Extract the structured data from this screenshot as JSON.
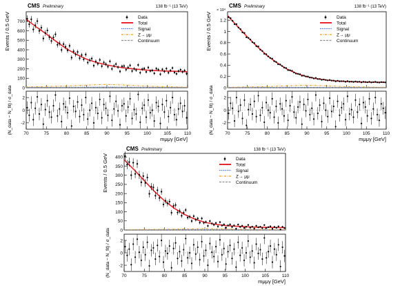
{
  "figure": {
    "cms_label": "CMS",
    "preliminary_label": "Preliminary",
    "lumi_label": "138 fb⁻¹ (13 TeV)"
  },
  "legend": {
    "data": "Data",
    "total": "Total",
    "signal": "Signal",
    "zmumu": "Z→ μμ",
    "continuum": "Continuum"
  },
  "colors": {
    "total": "#e8262b",
    "signal": "#3f6fe0",
    "zmumu": "#f39c1f",
    "continuum": "#8f8f8f",
    "data": "#000000"
  },
  "chart_data": [
    {
      "type": "scatter",
      "panel": "top-left",
      "title": "",
      "xlabel": "mμμγ [GeV]",
      "ylabel": "Events / 0.5 GeV",
      "ratio_ylabel": "(N_data − N_fit) / σ_data",
      "xlim": [
        70,
        110
      ],
      "ylim": [
        0,
        800
      ],
      "yticks": [
        0,
        100,
        200,
        300,
        400,
        500,
        600,
        700
      ],
      "y_multiplier": "",
      "xticks": [
        70,
        75,
        80,
        85,
        90,
        95,
        100,
        105,
        110
      ],
      "ratio_ylim": [
        -3,
        3
      ],
      "ratio_yticks": [
        -2,
        0,
        2
      ],
      "legend_position": "top-right",
      "series": [
        {
          "name": "Total",
          "x": [
            70,
            72.5,
            75,
            77.5,
            80,
            82.5,
            85,
            87.5,
            90,
            92.5,
            95,
            97.5,
            100,
            102.5,
            105,
            107.5,
            110
          ],
          "y": [
            720,
            640,
            565,
            485,
            410,
            350,
            300,
            265,
            240,
            220,
            205,
            195,
            185,
            180,
            175,
            172,
            168
          ]
        },
        {
          "name": "Signal",
          "x": [
            70,
            80,
            90,
            100,
            110
          ],
          "y": [
            3,
            5,
            7,
            5,
            3
          ]
        },
        {
          "name": "Z→ μμ",
          "x": [
            70,
            80,
            85,
            90,
            95,
            100,
            110
          ],
          "y": [
            8,
            18,
            28,
            35,
            28,
            16,
            6
          ]
        },
        {
          "name": "Continuum",
          "x": [
            70,
            110
          ],
          "y": [
            3,
            3
          ]
        }
      ],
      "data": {
        "name": "Data",
        "x_start": 70.25,
        "x_step": 0.5,
        "count": 80
      },
      "pulls": [
        0.4,
        -0.8,
        1.2,
        -1.5,
        0.3,
        2.1,
        -0.6,
        0.9,
        -2.2,
        0.1,
        1.5,
        -0.3,
        -1.1,
        0.7,
        2.4,
        -0.9,
        0.2,
        -1.8,
        1.0,
        0.5,
        -0.4,
        1.9,
        -2.5,
        0.6,
        -0.2,
        1.3,
        -1.0,
        0.8,
        -0.7,
        2.0,
        -1.4,
        0.0,
        1.1,
        -2.0,
        0.4,
        -0.5,
        1.7,
        -1.2,
        0.9,
        0.3,
        -0.8,
        2.2,
        -1.6,
        0.2,
        1.4,
        -0.1,
        -2.3,
        0.7,
        1.0,
        -0.9,
        0.5,
        1.8,
        -1.3,
        0.1,
        -0.6,
        2.5,
        -1.9,
        0.3,
        0.8,
        -1.1,
        1.6,
        -0.4,
        0.0,
        -1.7,
        1.2,
        0.6,
        -2.1,
        0.9,
        -0.3,
        1.5,
        -1.0,
        0.4,
        2.0,
        -0.7,
        -1.5,
        0.2,
        1.1,
        -0.2,
        0.7,
        -1.2
      ]
    },
    {
      "type": "scatter",
      "panel": "top-right",
      "title": "",
      "xlabel": "mμμγ [GeV]",
      "ylabel": "Events / 0.5 GeV",
      "ratio_ylabel": "(N_data − N_fit) / σ_data",
      "xlim": [
        70,
        110
      ],
      "ylim": [
        0,
        13500
      ],
      "yticks": [
        0,
        2000,
        4000,
        6000,
        8000,
        10000,
        12000
      ],
      "ytick_labels": [
        "0",
        "0.2",
        "0.4",
        "0.6",
        "0.8",
        "1",
        "1.2"
      ],
      "y_multiplier": "× 10⁴",
      "xticks": [
        70,
        75,
        80,
        85,
        90,
        95,
        100,
        105,
        110
      ],
      "ratio_ylim": [
        -3,
        3
      ],
      "ratio_yticks": [
        -2,
        0,
        2
      ],
      "legend_position": "top-right",
      "series": [
        {
          "name": "Total",
          "x": [
            70,
            72.5,
            75,
            77.5,
            80,
            82.5,
            85,
            87.5,
            90,
            92.5,
            95,
            97.5,
            100,
            102.5,
            105,
            107.5,
            110
          ],
          "y": [
            12800,
            10900,
            9000,
            7300,
            5700,
            4400,
            3300,
            2500,
            1950,
            1600,
            1350,
            1200,
            1100,
            1050,
            1000,
            980,
            960
          ]
        },
        {
          "name": "Signal",
          "x": [
            70,
            80,
            90,
            100,
            110
          ],
          "y": [
            40,
            60,
            80,
            60,
            40
          ]
        },
        {
          "name": "Z→ μμ",
          "x": [
            70,
            80,
            85,
            90,
            95,
            100,
            110
          ],
          "y": [
            80,
            200,
            330,
            450,
            340,
            190,
            70
          ]
        },
        {
          "name": "Continuum",
          "x": [
            70,
            110
          ],
          "y": [
            40,
            40
          ]
        }
      ],
      "data": {
        "name": "Data",
        "x_start": 70.25,
        "x_step": 0.5,
        "count": 80
      },
      "pulls": [
        -0.5,
        1.1,
        0.3,
        -1.7,
        2.0,
        -0.2,
        0.8,
        -1.3,
        1.6,
        -2.4,
        0.1,
        0.9,
        -0.6,
        1.4,
        -1.0,
        2.3,
        -0.8,
        0.4,
        -1.9,
        1.2,
        0.0,
        -0.4,
        1.8,
        -1.1,
        0.6,
        -2.0,
        1.0,
        0.2,
        -0.9,
        1.5,
        -1.6,
        0.7,
        2.1,
        -0.3,
        -1.2,
        0.5,
        1.3,
        -2.2,
        0.9,
        -0.1,
        1.7,
        -0.7,
        0.3,
        -1.4,
        2.4,
        -0.5,
        0.8,
        -1.8,
        1.1,
        0.0,
        -1.0,
        1.9,
        -0.2,
        0.6,
        -2.6,
        1.4,
        -0.8,
        0.4,
        1.0,
        -1.5,
        2.2,
        -0.6,
        0.1,
        -1.1,
        1.6,
        -0.3,
        0.9,
        -2.1,
        1.2,
        0.5,
        -0.9,
        1.8,
        -1.3,
        0.2,
        2.0,
        -0.7,
        -1.6,
        1.0,
        0.3,
        -0.4
      ]
    },
    {
      "type": "scatter",
      "panel": "bottom",
      "title": "",
      "xlabel": "mμμγ [GeV]",
      "ylabel": "Events / 0.5 GeV",
      "ratio_ylabel": "(N_data − N_fit) / σ_data",
      "xlim": [
        70,
        110
      ],
      "ylim": [
        0,
        420
      ],
      "yticks": [
        0,
        50,
        100,
        150,
        200,
        250,
        300,
        350,
        400
      ],
      "y_multiplier": "",
      "xticks": [
        70,
        75,
        80,
        85,
        90,
        95,
        100,
        105,
        110
      ],
      "ratio_ylim": [
        -3,
        3
      ],
      "ratio_yticks": [
        -2,
        0,
        2
      ],
      "legend_position": "top-right",
      "series": [
        {
          "name": "Total",
          "x": [
            70,
            72.5,
            75,
            77.5,
            80,
            82.5,
            85,
            87.5,
            90,
            92.5,
            95,
            97.5,
            100,
            102.5,
            105,
            107.5,
            110
          ],
          "y": [
            385,
            330,
            270,
            212,
            160,
            118,
            85,
            60,
            42,
            32,
            25,
            21,
            18,
            16,
            15,
            14,
            13
          ]
        },
        {
          "name": "Signal",
          "x": [
            70,
            80,
            90,
            100,
            110
          ],
          "y": [
            1,
            2,
            3,
            2,
            1
          ]
        },
        {
          "name": "Z→ μμ",
          "x": [
            70,
            80,
            85,
            90,
            95,
            100,
            110
          ],
          "y": [
            2,
            4,
            6,
            8,
            6,
            4,
            2
          ]
        },
        {
          "name": "Continuum",
          "x": [
            70,
            110
          ],
          "y": [
            1,
            1
          ]
        }
      ],
      "data": {
        "name": "Data",
        "x_start": 70.25,
        "x_step": 0.5,
        "count": 80
      },
      "pulls": [
        1.0,
        -0.4,
        0.6,
        -1.9,
        1.4,
        -0.7,
        2.2,
        0.1,
        -1.2,
        0.9,
        -0.3,
        1.7,
        -2.1,
        0.4,
        0.8,
        -1.0,
        1.2,
        -0.6,
        2.0,
        -1.5,
        0.3,
        -0.1,
        1.1,
        -2.4,
        0.7,
        1.6,
        -0.9,
        0.2,
        -1.3,
        0.5,
        2.3,
        -0.8,
        0.0,
        -1.7,
        1.3,
        -0.2,
        0.9,
        -1.1,
        1.8,
        -0.5,
        0.4,
        -2.0,
        1.5,
        0.1,
        -0.6,
        1.0,
        -1.4,
        2.1,
        -0.3,
        0.7,
        -1.8,
        0.2,
        1.2,
        -0.9,
        0.6,
        -2.3,
        1.7,
        -0.4,
        0.8,
        -1.2,
        0.0,
        1.9,
        -0.7,
        0.3,
        -1.6,
        1.4,
        -0.1,
        0.5,
        -1.0,
        2.4,
        -0.8,
        0.2,
        1.1,
        -1.5,
        0.6,
        -0.3,
        1.3,
        -2.2,
        0.9,
        -0.5
      ]
    }
  ]
}
